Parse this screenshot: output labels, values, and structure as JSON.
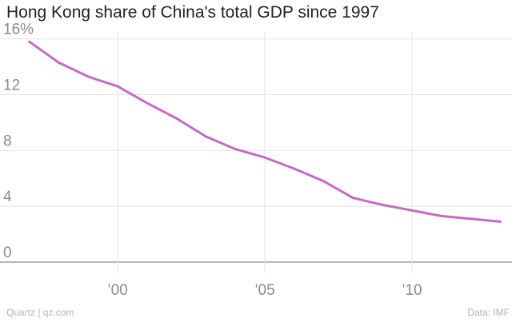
{
  "title": "Hong Kong share of China's total GDP since 1997",
  "footer": {
    "credit": "Quartz | qz.com",
    "source": "Data: IMF"
  },
  "colors": {
    "line": "#c869c4",
    "grid": "#e4e4e4",
    "axis": "#8c8c8c",
    "tick_text": "#8a8a8a"
  },
  "chart_data": {
    "type": "line",
    "title": "Hong Kong share of China's total GDP since 1997",
    "xlabel": "",
    "ylabel": "",
    "x": [
      1997,
      1998,
      1999,
      2000,
      2001,
      2002,
      2003,
      2004,
      2005,
      2006,
      2007,
      2008,
      2009,
      2010,
      2011,
      2012,
      2013
    ],
    "series": [
      {
        "values": [
          15.8,
          14.3,
          13.3,
          12.6,
          11.4,
          10.3,
          9.0,
          8.1,
          7.5,
          6.7,
          5.8,
          4.6,
          4.1,
          3.7,
          3.3,
          3.1,
          2.9
        ]
      }
    ],
    "xlim": [
      1996.6,
      2013.4
    ],
    "ylim": [
      0,
      16.5
    ],
    "x_ticks": [
      {
        "value": 2000,
        "label": "’00"
      },
      {
        "value": 2005,
        "label": "’05"
      },
      {
        "value": 2010,
        "label": "’10"
      }
    ],
    "y_ticks": [
      {
        "value": 0,
        "label": "0"
      },
      {
        "value": 4,
        "label": "4"
      },
      {
        "value": 8,
        "label": "8"
      },
      {
        "value": 12,
        "label": "12"
      },
      {
        "value": 16,
        "label": "16%"
      }
    ],
    "grid": true
  }
}
